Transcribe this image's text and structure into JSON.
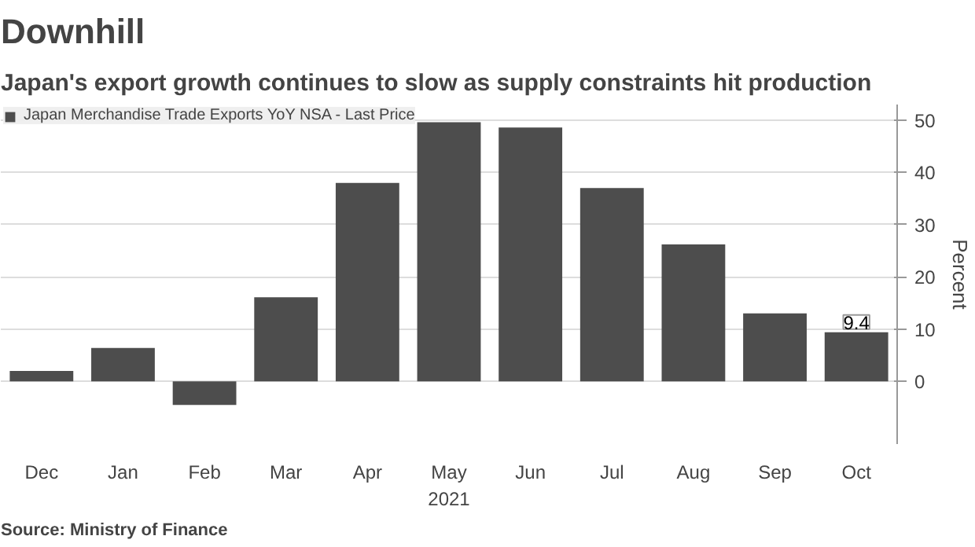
{
  "chart_data": {
    "type": "bar",
    "title": "Downhill",
    "subtitle": "Japan's export growth continues to slow as supply constraints hit production",
    "categories": [
      "Dec",
      "Jan",
      "Feb",
      "Mar",
      "Apr",
      "May",
      "Jun",
      "Jul",
      "Aug",
      "Sep",
      "Oct"
    ],
    "series": [
      {
        "name": "Japan Merchandise Trade Exports YoY NSA - Last Price",
        "color": "#4d4d4d",
        "values": [
          2.0,
          6.4,
          -4.5,
          16.1,
          38.0,
          49.6,
          48.6,
          37.0,
          26.2,
          13.0,
          9.4
        ],
        "value_labels": [
          null,
          null,
          null,
          null,
          null,
          null,
          null,
          null,
          null,
          null,
          "9.4"
        ]
      }
    ],
    "xlabel": "2021",
    "ylabel": "Percent",
    "ylim": [
      -12,
      53
    ],
    "yticks": [
      0,
      10,
      20,
      30,
      40,
      50
    ],
    "grid": "y",
    "legend": "top left",
    "annotations": [
      "Source: Ministry of Finance"
    ]
  }
}
